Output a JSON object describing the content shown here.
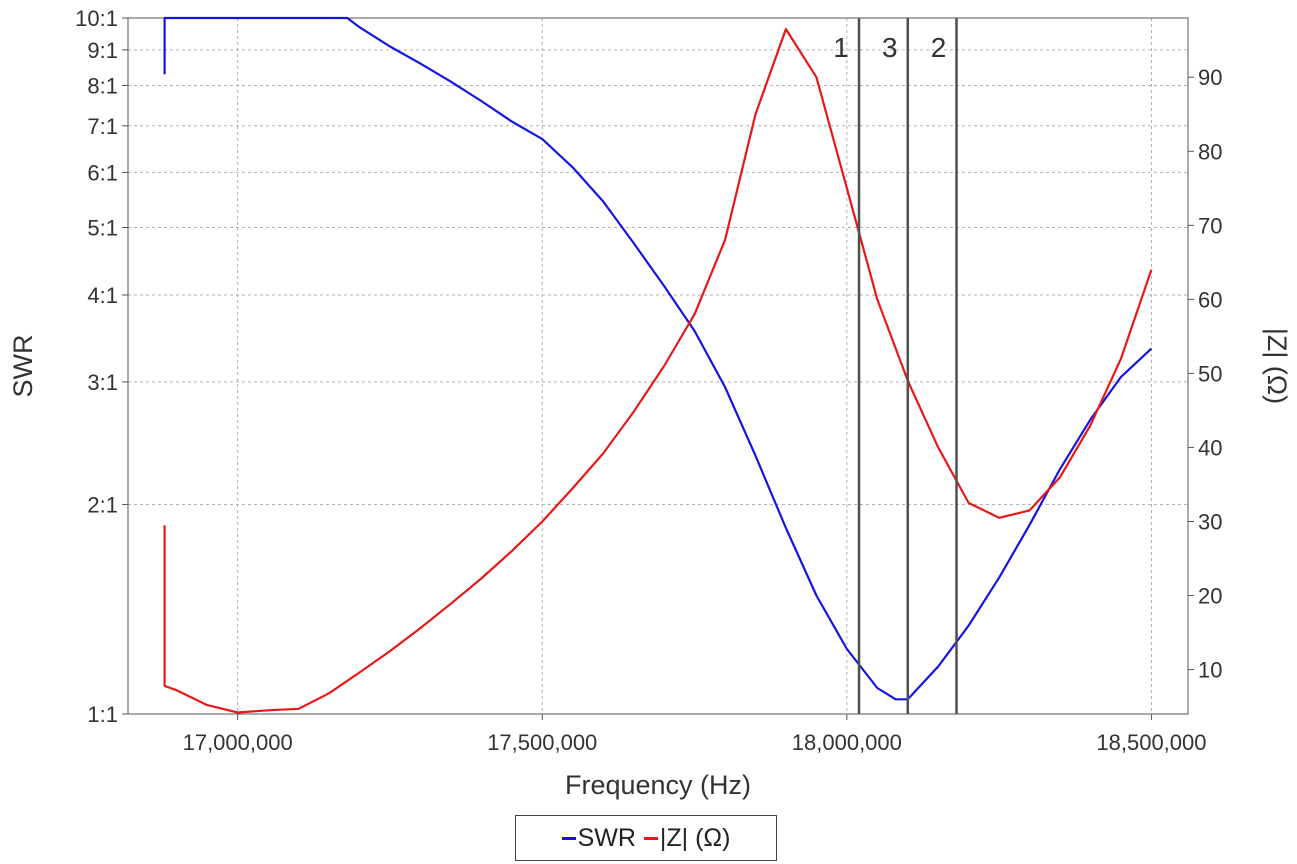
{
  "chart_data": {
    "type": "line",
    "xlabel": "Frequency (Hz)",
    "ylabel_left": "SWR",
    "ylabel_right": "|Z| (Ω)",
    "grid": true,
    "legend_position": "bottom-center",
    "x_axis": {
      "range": [
        16820000,
        18560000
      ],
      "ticks": [
        17000000,
        17500000,
        18000000,
        18500000
      ],
      "tick_labels": [
        "17,000,000",
        "17,500,000",
        "18,000,000",
        "18,500,000"
      ]
    },
    "y_left": {
      "scale": "log",
      "range": [
        1.0,
        10.0
      ],
      "ticks": [
        1,
        2,
        3,
        4,
        5,
        6,
        7,
        8,
        9,
        10
      ],
      "tick_labels": [
        "1:1",
        "2:1",
        "3:1",
        "4:1",
        "5:1",
        "6:1",
        "7:1",
        "8:1",
        "9:1",
        "10:1"
      ]
    },
    "y_right": {
      "scale": "linear",
      "range": [
        4,
        98
      ],
      "ticks": [
        10,
        20,
        30,
        40,
        50,
        60,
        70,
        80,
        90
      ],
      "tick_labels": [
        "10",
        "20",
        "30",
        "40",
        "50",
        "60",
        "70",
        "80",
        "90"
      ]
    },
    "series": [
      {
        "name": "SWR",
        "color": "#1515e0",
        "axis": "left",
        "points": [
          [
            16880000,
            8.3
          ],
          [
            16880000,
            10.0
          ],
          [
            17180000,
            10.0
          ],
          [
            17200000,
            9.7
          ],
          [
            17250000,
            9.1
          ],
          [
            17300000,
            8.6
          ],
          [
            17350000,
            8.1
          ],
          [
            17400000,
            7.6
          ],
          [
            17450000,
            7.1
          ],
          [
            17500000,
            6.7
          ],
          [
            17550000,
            6.1
          ],
          [
            17600000,
            5.45
          ],
          [
            17650000,
            4.75
          ],
          [
            17700000,
            4.12
          ],
          [
            17750000,
            3.55
          ],
          [
            17800000,
            2.95
          ],
          [
            17850000,
            2.35
          ],
          [
            17900000,
            1.85
          ],
          [
            17950000,
            1.48
          ],
          [
            18000000,
            1.24
          ],
          [
            18050000,
            1.09
          ],
          [
            18080000,
            1.05
          ],
          [
            18100000,
            1.05
          ],
          [
            18150000,
            1.17
          ],
          [
            18200000,
            1.34
          ],
          [
            18250000,
            1.57
          ],
          [
            18300000,
            1.87
          ],
          [
            18350000,
            2.25
          ],
          [
            18400000,
            2.65
          ],
          [
            18450000,
            3.05
          ],
          [
            18500000,
            3.35
          ]
        ]
      },
      {
        "name": "|Z| (Ω)",
        "color": "#e81818",
        "axis": "right",
        "points": [
          [
            16880000,
            29.5
          ],
          [
            16880000,
            7.8
          ],
          [
            16900000,
            7.2
          ],
          [
            16950000,
            5.2
          ],
          [
            17000000,
            4.2
          ],
          [
            17050000,
            4.5
          ],
          [
            17100000,
            4.7
          ],
          [
            17150000,
            6.8
          ],
          [
            17200000,
            9.6
          ],
          [
            17250000,
            12.5
          ],
          [
            17300000,
            15.6
          ],
          [
            17350000,
            18.9
          ],
          [
            17400000,
            22.3
          ],
          [
            17450000,
            26.0
          ],
          [
            17500000,
            30.0
          ],
          [
            17550000,
            34.5
          ],
          [
            17600000,
            39.2
          ],
          [
            17650000,
            44.8
          ],
          [
            17700000,
            51.0
          ],
          [
            17750000,
            58.0
          ],
          [
            17800000,
            68.0
          ],
          [
            17850000,
            85.0
          ],
          [
            17900000,
            96.5
          ],
          [
            17950000,
            90.0
          ],
          [
            18000000,
            75.0
          ],
          [
            18050000,
            60.0
          ],
          [
            18100000,
            49.0
          ],
          [
            18150000,
            40.0
          ],
          [
            18200000,
            32.5
          ],
          [
            18250000,
            30.5
          ],
          [
            18300000,
            31.5
          ],
          [
            18350000,
            36.0
          ],
          [
            18400000,
            43.0
          ],
          [
            18450000,
            52.0
          ],
          [
            18500000,
            64.0
          ]
        ]
      }
    ],
    "markers": [
      {
        "label": "1",
        "x": 18020000
      },
      {
        "label": "3",
        "x": 18100000
      },
      {
        "label": "2",
        "x": 18180000
      }
    ],
    "colors": {
      "marker_line": "#505050",
      "grid": "#b0b0b0",
      "frame": "#555555"
    }
  },
  "legend": {
    "items": [
      {
        "label": "SWR",
        "color": "#1515e0"
      },
      {
        "label": "|Z| (Ω)",
        "color": "#e81818"
      }
    ]
  }
}
